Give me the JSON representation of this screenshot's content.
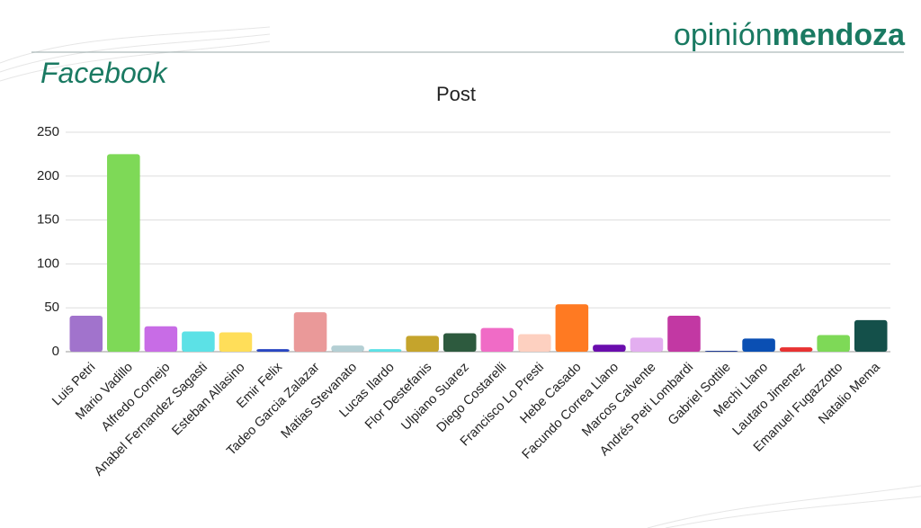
{
  "header": {
    "brand_light": "opinión",
    "brand_bold": "mendoza",
    "section": "Facebook"
  },
  "chart_data": {
    "type": "bar",
    "title": "Post",
    "categories": [
      "Luis Petri",
      "Mario Vadillo",
      "Alfredo Cornejo",
      "Anabel Fernandez Sagasti",
      "Esteban Allasino",
      "Emir Felix",
      "Tadeo Garcia Zalazar",
      "Matias Stevanato",
      "Lucas Ilardo",
      "Flor Destefanis",
      "Ulpiano Suarez",
      "Diego Costarelli",
      "Francisco Lo Presti",
      "Hebe Casado",
      "Facundo Correa Llano",
      "Marcos Calvente",
      "Andrés Peti Lombardi",
      "Gabriel Sottile",
      "Mechi Llano",
      "Lautaro Jimenez",
      "Emanuel Fugazzotto",
      "Natalio Mema"
    ],
    "values": [
      41,
      225,
      29,
      23,
      22,
      3,
      45,
      7,
      3,
      18,
      21,
      27,
      20,
      54,
      8,
      16,
      41,
      1,
      15,
      5,
      19,
      36
    ],
    "colors": [
      "#a173cc",
      "#7ed957",
      "#c86ce6",
      "#5ce1e6",
      "#ffde59",
      "#2946c2",
      "#ea9999",
      "#b4cfd4",
      "#5ce1e6",
      "#c5a42c",
      "#2d5a3e",
      "#f06bc6",
      "#fdd0c0",
      "#ff7a22",
      "#6a0dad",
      "#e3aef0",
      "#c238a3",
      "#1f3a93",
      "#0a4fb3",
      "#e83232",
      "#7ed957",
      "#14504a"
    ],
    "ylim": [
      0,
      250
    ],
    "yticks": [
      0,
      50,
      100,
      150,
      200,
      250
    ],
    "grid": true
  }
}
